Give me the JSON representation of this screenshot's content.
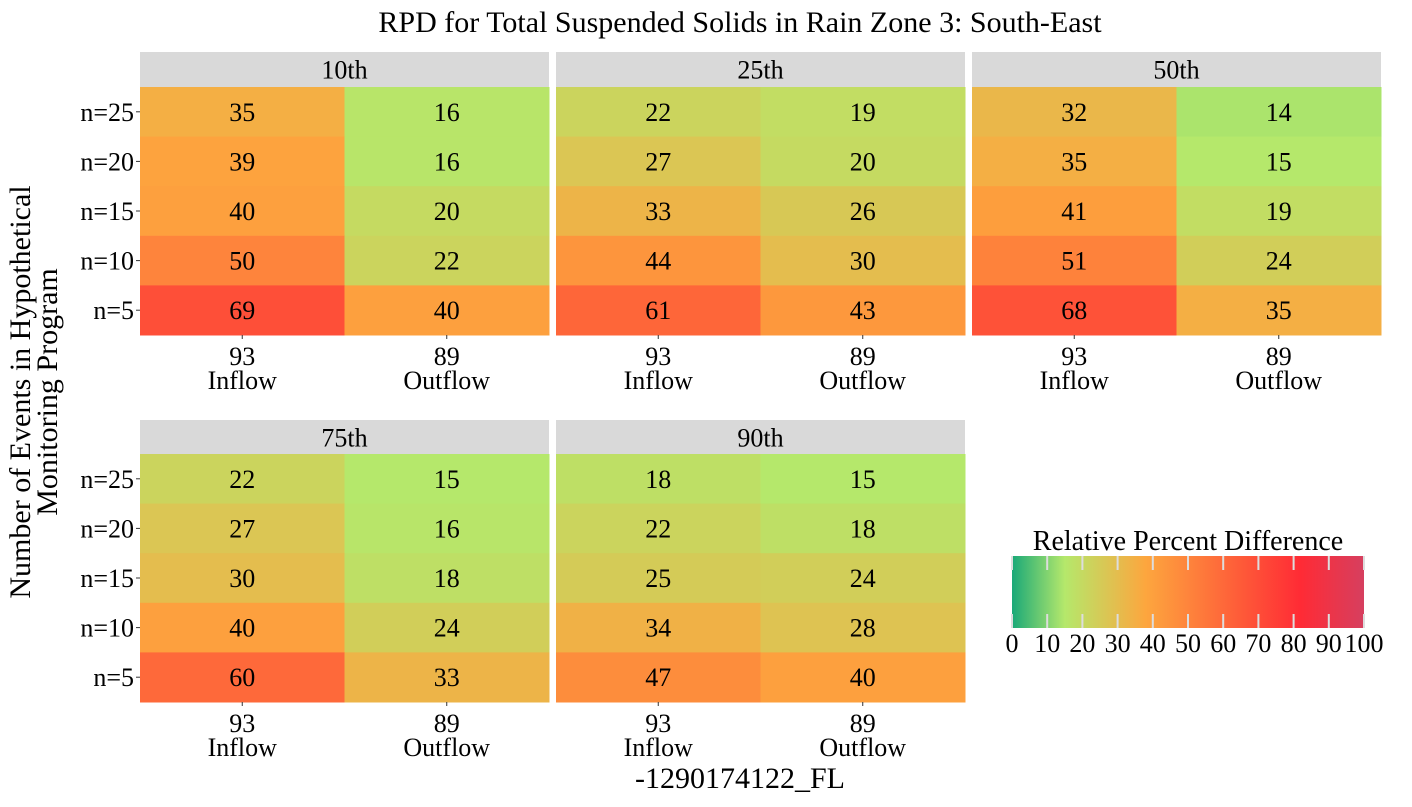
{
  "chart_data": {
    "type": "heatmap",
    "title": "RPD for Total Suspended Solids in Rain Zone 3: South-East",
    "xlabel": "-1290174122_FL",
    "ylabel_lines": [
      "Number of Events in Hypothetical",
      "Monitoring Program"
    ],
    "x_categories": [
      {
        "count": "93",
        "name": "Inflow"
      },
      {
        "count": "89",
        "name": "Outflow"
      }
    ],
    "y_categories": [
      "n=25",
      "n=20",
      "n=15",
      "n=10",
      "n=5"
    ],
    "legend": {
      "title": "Relative Percent Difference",
      "range": [
        0,
        100
      ],
      "ticks": [
        "0",
        "10",
        "20",
        "30",
        "40",
        "50",
        "60",
        "70",
        "80",
        "90",
        "100"
      ],
      "colors": [
        "#1aa978",
        "#b5e86b",
        "#fda63e",
        "#ff2b35",
        "#d63f5f"
      ]
    },
    "panels": [
      {
        "label": "10th",
        "values": [
          [
            35,
            16
          ],
          [
            39,
            16
          ],
          [
            40,
            20
          ],
          [
            50,
            22
          ],
          [
            69,
            40
          ]
        ]
      },
      {
        "label": "25th",
        "values": [
          [
            22,
            19
          ],
          [
            27,
            20
          ],
          [
            33,
            26
          ],
          [
            44,
            30
          ],
          [
            61,
            43
          ]
        ]
      },
      {
        "label": "50th",
        "values": [
          [
            32,
            14
          ],
          [
            35,
            15
          ],
          [
            41,
            19
          ],
          [
            51,
            24
          ],
          [
            68,
            35
          ]
        ]
      },
      {
        "label": "75th",
        "values": [
          [
            22,
            15
          ],
          [
            27,
            16
          ],
          [
            30,
            18
          ],
          [
            40,
            24
          ],
          [
            60,
            33
          ]
        ]
      },
      {
        "label": "90th",
        "values": [
          [
            18,
            15
          ],
          [
            22,
            18
          ],
          [
            25,
            24
          ],
          [
            34,
            28
          ],
          [
            47,
            40
          ]
        ]
      }
    ]
  }
}
